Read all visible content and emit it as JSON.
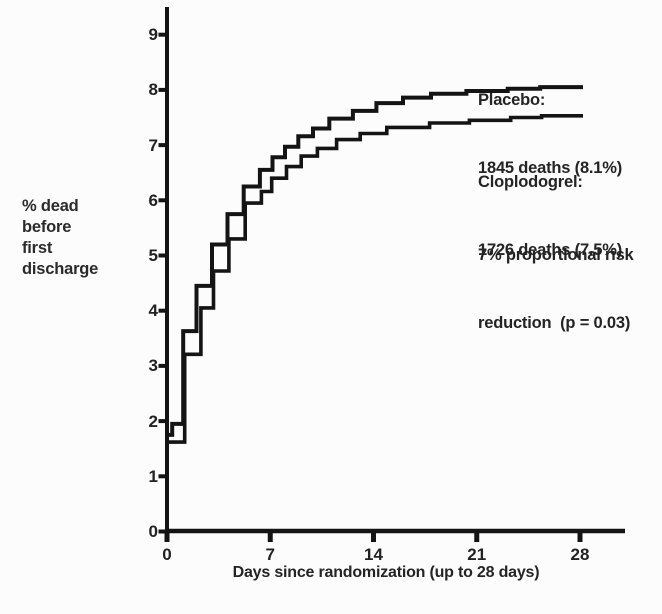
{
  "colors": {
    "background": "#fcfcfc",
    "ink": "#141414",
    "text": "#262626"
  },
  "chart_data": {
    "type": "line",
    "line_style": "step-after",
    "title": "",
    "xlabel": "Days since randomization (up to 28 days)",
    "ylabel_lines": [
      "% dead",
      "before",
      "first",
      "discharge"
    ],
    "x_ticks": [
      0,
      7,
      14,
      21,
      28
    ],
    "y_ticks": [
      0,
      1,
      2,
      3,
      4,
      5,
      6,
      7,
      8,
      9
    ],
    "xlim": [
      0,
      31
    ],
    "ylim": [
      0,
      9.5
    ],
    "grid": false,
    "legend_position": "inline-right",
    "series": [
      {
        "name": "Placebo",
        "label_lines": [
          "Placebo:",
          "1845 deaths (8.1%)"
        ],
        "end_day": 28.2,
        "points": [
          [
            0,
            1.75
          ],
          [
            0.35,
            1.95
          ],
          [
            1.1,
            3.63
          ],
          [
            2.0,
            4.45
          ],
          [
            3.05,
            5.2
          ],
          [
            4.1,
            5.75
          ],
          [
            5.2,
            6.25
          ],
          [
            6.3,
            6.55
          ],
          [
            7.15,
            6.78
          ],
          [
            8.0,
            6.97
          ],
          [
            8.9,
            7.16
          ],
          [
            9.9,
            7.3
          ],
          [
            11.0,
            7.48
          ],
          [
            12.6,
            7.62
          ],
          [
            14.2,
            7.76
          ],
          [
            16.0,
            7.86
          ],
          [
            17.9,
            7.93
          ],
          [
            20.3,
            7.98
          ],
          [
            23.1,
            8.02
          ],
          [
            25.3,
            8.05
          ]
        ]
      },
      {
        "name": "Cloplodogrel",
        "label_lines": [
          "Cloplodogrel:",
          "1726 deaths (7.5%)"
        ],
        "end_day": 28.2,
        "points": [
          [
            0,
            1.62
          ],
          [
            1.2,
            3.21
          ],
          [
            2.3,
            4.05
          ],
          [
            3.15,
            4.72
          ],
          [
            4.2,
            5.3
          ],
          [
            5.3,
            5.95
          ],
          [
            6.4,
            6.16
          ],
          [
            7.1,
            6.4
          ],
          [
            8.1,
            6.61
          ],
          [
            9.1,
            6.8
          ],
          [
            10.2,
            6.94
          ],
          [
            11.5,
            7.1
          ],
          [
            13.1,
            7.21
          ],
          [
            14.9,
            7.32
          ],
          [
            17.8,
            7.4
          ],
          [
            20.5,
            7.45
          ],
          [
            23.3,
            7.5
          ],
          [
            25.4,
            7.53
          ]
        ]
      }
    ],
    "annotation_lines": [
      "7% proportional risk",
      "reduction  (p = 0.03)"
    ]
  }
}
